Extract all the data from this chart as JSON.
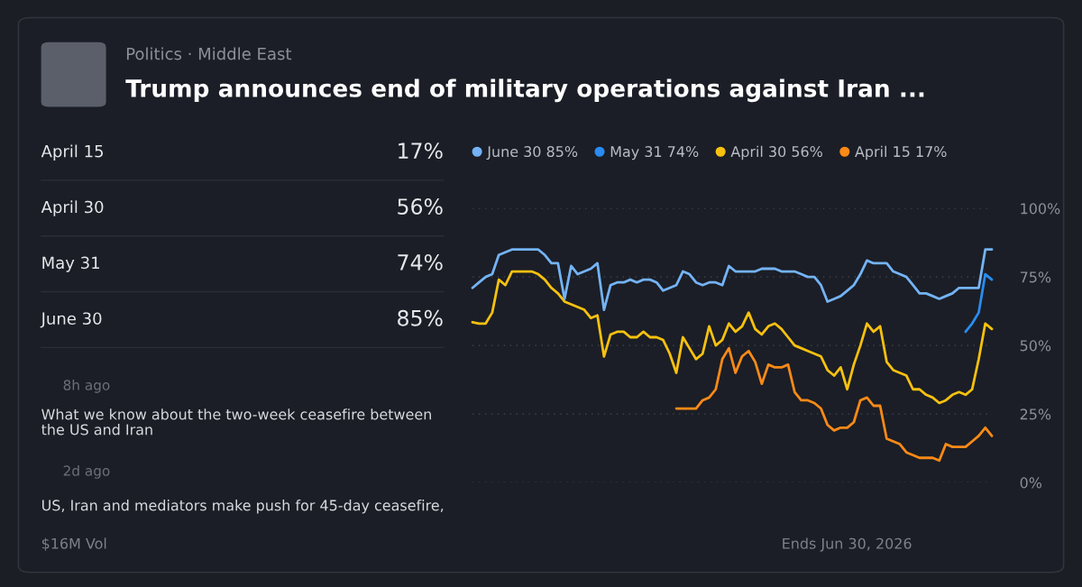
{
  "chart_data": {
    "type": "line",
    "title": "Trump announces end of military operations against Iran ...",
    "subtitle": "Politics · Middle East",
    "annotations": [
      "April 15",
      "17%",
      "April 30",
      "56%",
      "May 31",
      "74%",
      "June 30",
      "85%",
      "8h ago",
      "What we know about the two-week ceasefire between",
      "the US and Iran",
      "2d ago",
      "US, Iran and mediators make push for 45-day ceasefire,",
      "$16M Vol",
      "Ends Jun 30, 2026"
    ],
    "categories": [
      null,
      null,
      null,
      null,
      null,
      null,
      null,
      null,
      null,
      null,
      null,
      null,
      null,
      null,
      null,
      null,
      null,
      null,
      null,
      null,
      null,
      null,
      null,
      null,
      null,
      null,
      null,
      null,
      null,
      null,
      null,
      null,
      null,
      null,
      null,
      null,
      null,
      null,
      null,
      null,
      null,
      null,
      null,
      null,
      null,
      null,
      null,
      null,
      null,
      null,
      null,
      null,
      null,
      null,
      null,
      null,
      null,
      null,
      null,
      null,
      null,
      null,
      null,
      null,
      null,
      null,
      null,
      null,
      null,
      null,
      null,
      null,
      null,
      null,
      null,
      null,
      null,
      null,
      null,
      null
    ],
    "series": [
      {
        "name": "June 30 85%",
        "color": "#74b3f5",
        "values": [
          71,
          73,
          75,
          76,
          83,
          84,
          85,
          85,
          85,
          85,
          85,
          83,
          80,
          80,
          67,
          79,
          76,
          77,
          78,
          80,
          63,
          72,
          73,
          73,
          74,
          73,
          74,
          74,
          73,
          70,
          71,
          72,
          77,
          76,
          73,
          72,
          73,
          73,
          72,
          79,
          77,
          77,
          77,
          77,
          78,
          78,
          78,
          77,
          77,
          77,
          76,
          75,
          75,
          72,
          66,
          67,
          68,
          70,
          72,
          76,
          81,
          80,
          80,
          80,
          77,
          76,
          75,
          72,
          69,
          69,
          68,
          67,
          68,
          69,
          71,
          71,
          71,
          71,
          85,
          85
        ]
      },
      {
        "name": "May 31 74%",
        "color": "#2a8cf2",
        "values": [
          null,
          null,
          null,
          null,
          null,
          null,
          null,
          null,
          null,
          null,
          null,
          null,
          null,
          null,
          null,
          null,
          null,
          null,
          null,
          null,
          null,
          null,
          null,
          null,
          null,
          null,
          null,
          null,
          null,
          null,
          null,
          null,
          null,
          null,
          null,
          null,
          null,
          null,
          null,
          null,
          null,
          null,
          null,
          null,
          null,
          null,
          null,
          null,
          null,
          null,
          null,
          null,
          null,
          null,
          null,
          null,
          null,
          null,
          null,
          null,
          null,
          null,
          null,
          null,
          null,
          null,
          null,
          null,
          null,
          null,
          null,
          null,
          null,
          null,
          null,
          55,
          58,
          62,
          76,
          74
        ]
      },
      {
        "name": "April 30 56%",
        "color": "#f7c10f",
        "values": [
          58.5,
          58,
          58,
          62,
          74,
          72,
          77,
          77,
          77,
          77,
          76,
          74,
          71,
          69,
          66,
          65,
          64,
          63,
          60,
          61,
          46,
          54,
          55,
          55,
          53,
          53,
          55,
          53,
          53,
          52,
          47,
          40,
          53,
          49,
          45,
          47,
          57,
          50,
          52,
          58,
          55,
          57,
          62,
          56,
          54,
          57,
          58,
          56,
          53,
          50,
          49,
          48,
          47,
          46,
          41,
          39,
          42,
          34,
          43,
          50,
          58,
          55,
          57,
          44,
          41,
          40,
          39,
          34,
          34,
          32,
          31,
          29,
          30,
          32,
          33,
          32,
          34,
          45,
          58,
          56
        ]
      },
      {
        "name": "April 15 17%",
        "color": "#fb8a17",
        "values": [
          null,
          null,
          null,
          null,
          null,
          null,
          null,
          null,
          null,
          null,
          null,
          null,
          null,
          null,
          null,
          null,
          null,
          null,
          null,
          null,
          null,
          null,
          null,
          null,
          null,
          null,
          null,
          null,
          null,
          null,
          null,
          27,
          27,
          27,
          27,
          30,
          31,
          34,
          45,
          49,
          40,
          46,
          48,
          44,
          36,
          43,
          42,
          42,
          43,
          33,
          30,
          30,
          29,
          27,
          21,
          19,
          20,
          20,
          22,
          30,
          31,
          28,
          28,
          16,
          15,
          14,
          11,
          10,
          9,
          9,
          9,
          8,
          14,
          13,
          13,
          13,
          15,
          17,
          20,
          17
        ]
      }
    ],
    "ylim": [
      0,
      100
    ],
    "yticks": [
      {
        "value": 0,
        "label": "0%"
      },
      {
        "value": 25,
        "label": "25%"
      },
      {
        "value": 50,
        "label": "50%"
      },
      {
        "value": 75,
        "label": "75%"
      },
      {
        "value": 100,
        "label": "100%"
      }
    ],
    "tick_labels": "y",
    "grid": "y",
    "legend": "top left"
  }
}
